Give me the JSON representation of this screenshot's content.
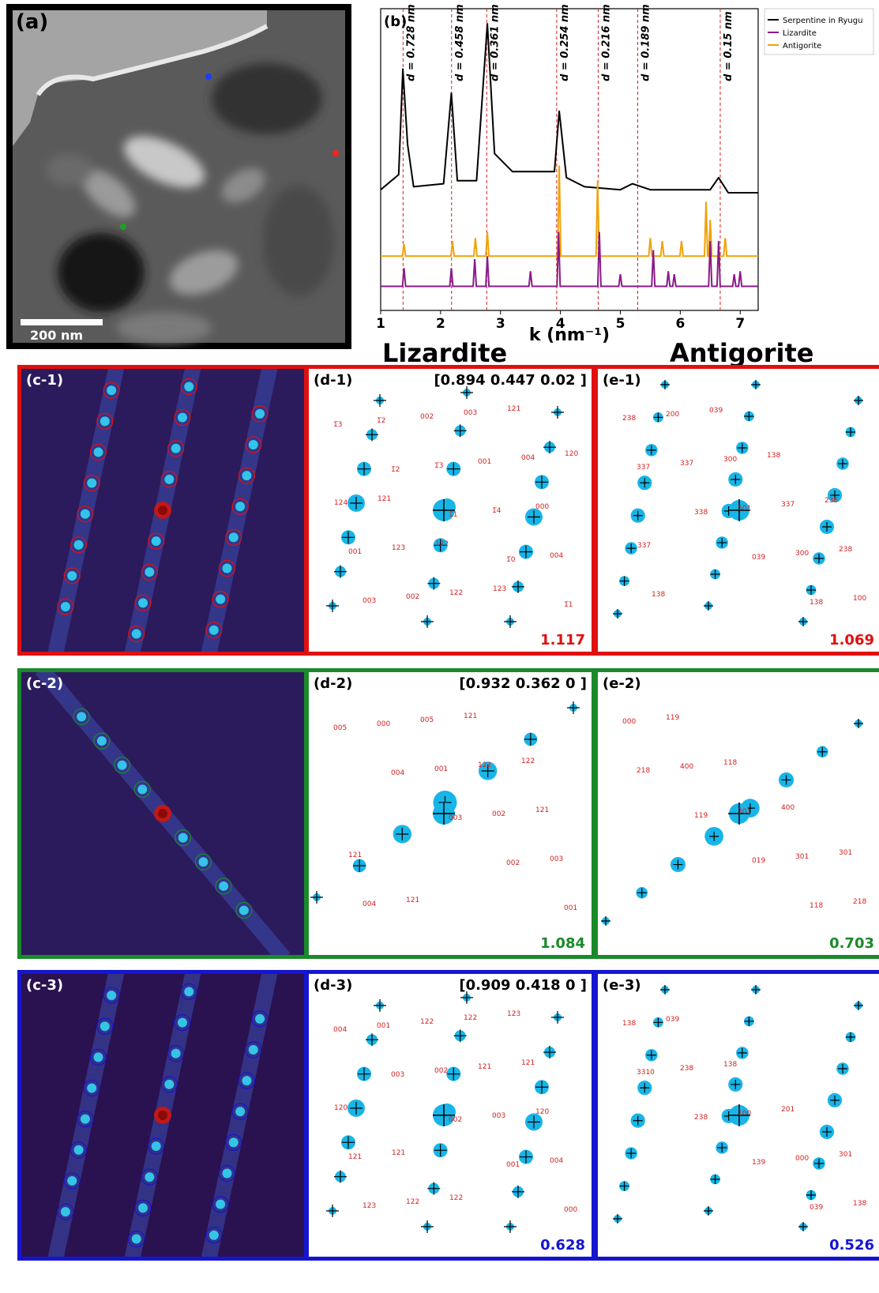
{
  "panel_a": {
    "label": "(a)",
    "scalebar": "200 nm"
  },
  "chart_data": {
    "type": "line",
    "label": "(b)",
    "xlabel": "k (nm⁻¹)",
    "xlim": [
      1,
      7.3
    ],
    "xticks": [
      "1",
      "2",
      "3",
      "4",
      "5",
      "6",
      "7"
    ],
    "legend_position": "top-right",
    "series": [
      {
        "name": "Serpentine in Ryugu",
        "color": "#000000",
        "x": [
          1.0,
          1.3,
          1.37,
          1.45,
          1.55,
          2.05,
          2.18,
          2.28,
          2.6,
          2.78,
          2.9,
          3.2,
          3.9,
          3.98,
          4.1,
          4.4,
          5.0,
          5.2,
          5.5,
          6.5,
          6.64,
          6.8,
          7.3
        ],
        "y": [
          0.4,
          0.45,
          0.8,
          0.55,
          0.41,
          0.42,
          0.72,
          0.43,
          0.43,
          0.95,
          0.52,
          0.46,
          0.46,
          0.66,
          0.44,
          0.41,
          0.4,
          0.42,
          0.4,
          0.4,
          0.44,
          0.39,
          0.39
        ]
      },
      {
        "name": "Lizardite",
        "color": "#8b1a89",
        "peaks_x": [
          1.39,
          2.18,
          2.57,
          2.78,
          3.5,
          3.97,
          4.65,
          5.0,
          5.55,
          5.8,
          5.9,
          6.5,
          6.64,
          6.9,
          7.0
        ],
        "peaks_y": [
          0.06,
          0.06,
          0.09,
          0.1,
          0.05,
          0.18,
          0.18,
          0.04,
          0.12,
          0.05,
          0.04,
          0.15,
          0.15,
          0.04,
          0.05
        ]
      },
      {
        "name": "Antigorite",
        "color": "#f0a30a",
        "peaks_x": [
          1.39,
          2.2,
          2.58,
          2.78,
          3.98,
          4.62,
          5.5,
          5.7,
          6.02,
          6.43,
          6.5,
          6.75
        ],
        "peaks_y": [
          0.04,
          0.05,
          0.06,
          0.08,
          0.3,
          0.25,
          0.06,
          0.05,
          0.05,
          0.18,
          0.12,
          0.06
        ]
      }
    ],
    "d_lines": [
      {
        "k": 1.374,
        "label": "d = 0.728 nm"
      },
      {
        "k": 2.183,
        "label": "d = 0.458 nm"
      },
      {
        "k": 2.77,
        "label": "d = 0.361 nm"
      },
      {
        "k": 3.937,
        "label": "d = 0.254 nm"
      },
      {
        "k": 4.63,
        "label": "d = 0.216 nm"
      },
      {
        "k": 5.29,
        "label": "d = 0.189 nm"
      },
      {
        "k": 6.667,
        "label": "d = 0.15 nm"
      }
    ]
  },
  "headers": {
    "lizardite": "Lizardite",
    "antigorite": "Antigorite"
  },
  "rows": [
    {
      "color": "#e01010",
      "c": "(c-1)",
      "d": "(d-1)",
      "zone": "[0.894 0.447 0.02 ]",
      "d_score": "1.117",
      "e": "(e-1)",
      "e_score": "1.069",
      "d_labels": [
        "1̅3",
        "1̅2",
        "1̅1",
        "1̅0",
        "1̅1",
        "1̅2",
        "1̅3",
        "1̅4",
        "004",
        "003",
        "002",
        "001",
        "000",
        "001",
        "002",
        "003",
        "004",
        "124",
        "123",
        "122",
        "121",
        "120",
        "121",
        "122",
        "123"
      ],
      "e_labels": [
        "337",
        "338",
        "039",
        "138",
        "238",
        "337",
        "501",
        "300",
        "100",
        "200",
        "300",
        "337",
        "238",
        "138",
        "039",
        "138",
        "238",
        "337"
      ]
    },
    {
      "color": "#1a8a2a",
      "c": "(c-2)",
      "d": "(d-2)",
      "zone": "[0.932 0.362 0 ]",
      "d_score": "1.084",
      "e": "(e-2)",
      "e_score": "0.703",
      "d_labels": [
        "005",
        "004",
        "003",
        "002",
        "001",
        "000",
        "001",
        "002",
        "003",
        "004",
        "005",
        "122",
        "121",
        "121",
        "121",
        "121",
        "122"
      ],
      "e_labels": [
        "218",
        "119",
        "019",
        "118",
        "000",
        "400",
        "301",
        "301",
        "218",
        "119",
        "118",
        "400",
        "301"
      ]
    },
    {
      "color": "#1515d0",
      "c": "(c-3)",
      "d": "(d-3)",
      "zone": "[0.909 0.418 0 ]",
      "d_score": "0.628",
      "e": "(e-3)",
      "e_score": "0.526",
      "d_labels": [
        "004",
        "003",
        "002",
        "001",
        "000",
        "001",
        "002",
        "003",
        "004",
        "123",
        "122",
        "121",
        "120",
        "121",
        "122",
        "122",
        "121",
        "120",
        "121",
        "122",
        "123"
      ],
      "e_labels": [
        "3310",
        "238",
        "139",
        "039",
        "138",
        "238",
        "100",
        "000",
        "138",
        "039",
        "138",
        "201",
        "301"
      ]
    }
  ]
}
